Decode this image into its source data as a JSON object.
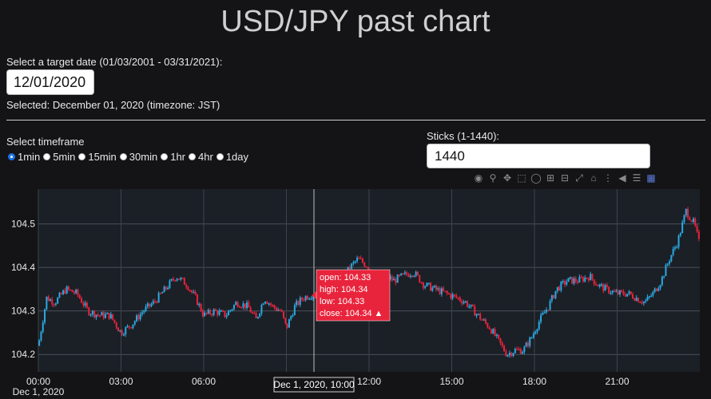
{
  "header": {
    "title": "USD/JPY past chart"
  },
  "date": {
    "label": "Select a target date (01/03/2001 - 03/31/2021):",
    "value": "12/01/2020",
    "selected_text": "Selected: December 01, 2020 (timezone: JST)"
  },
  "timeframe": {
    "label": "Select timeframe",
    "options": [
      "1min",
      "5min",
      "15min",
      "30min",
      "1hr",
      "4hr",
      "1day"
    ],
    "selected": "1min"
  },
  "sticks": {
    "label": "Sticks (1-1440):",
    "value": "1440"
  },
  "modebar": [
    "camera-icon",
    "zoom-icon",
    "pan-icon",
    "box-select-icon",
    "lasso-icon",
    "zoom-in-icon",
    "zoom-out-icon",
    "autoscale-icon",
    "home-icon",
    "spike-lines-icon",
    "hover-closest-icon",
    "hover-compare-icon",
    "plotly-logo-icon"
  ],
  "colors": {
    "up": "#29a9e1",
    "down": "#e8243c",
    "background": "#141416",
    "plot_bg": "#1b1f26"
  },
  "chart_data": {
    "type": "candlestick",
    "x_range": [
      "00:00",
      "24:00"
    ],
    "x_ticks": [
      "00:00",
      "03:00",
      "06:00",
      "09:00",
      "12:00",
      "15:00",
      "18:00",
      "21:00"
    ],
    "x_subtitle": "Dec 1, 2020",
    "ylim": [
      104.16,
      104.58
    ],
    "y_ticks": [
      "104.2",
      "104.3",
      "104.4",
      "104.5"
    ],
    "y_tick_values": [
      104.2,
      104.3,
      104.4,
      104.5
    ],
    "close_path": [
      [
        0.0,
        104.22
      ],
      [
        0.3,
        104.33
      ],
      [
        0.6,
        104.32
      ],
      [
        1.0,
        104.35
      ],
      [
        1.4,
        104.34
      ],
      [
        1.8,
        104.3
      ],
      [
        2.2,
        104.29
      ],
      [
        2.6,
        104.29
      ],
      [
        3.0,
        104.25
      ],
      [
        3.4,
        104.27
      ],
      [
        3.8,
        104.3
      ],
      [
        4.2,
        104.32
      ],
      [
        4.6,
        104.35
      ],
      [
        5.0,
        104.38
      ],
      [
        5.4,
        104.36
      ],
      [
        5.7,
        104.33
      ],
      [
        6.0,
        104.29
      ],
      [
        6.4,
        104.3
      ],
      [
        6.8,
        104.29
      ],
      [
        7.2,
        104.32
      ],
      [
        7.6,
        104.31
      ],
      [
        7.9,
        104.28
      ],
      [
        8.2,
        104.33
      ],
      [
        8.5,
        104.31
      ],
      [
        8.8,
        104.3
      ],
      [
        9.0,
        104.26
      ],
      [
        9.3,
        104.31
      ],
      [
        9.6,
        104.33
      ],
      [
        10.0,
        104.34
      ],
      [
        10.4,
        104.35
      ],
      [
        10.8,
        104.37
      ],
      [
        11.0,
        104.37
      ],
      [
        11.3,
        104.4
      ],
      [
        11.6,
        104.42
      ],
      [
        12.0,
        104.4
      ],
      [
        12.3,
        104.38
      ],
      [
        12.6,
        104.38
      ],
      [
        12.9,
        104.37
      ],
      [
        13.2,
        104.38
      ],
      [
        13.6,
        104.39
      ],
      [
        14.0,
        104.36
      ],
      [
        14.4,
        104.35
      ],
      [
        14.8,
        104.34
      ],
      [
        15.2,
        104.33
      ],
      [
        15.5,
        104.32
      ],
      [
        15.8,
        104.3
      ],
      [
        16.1,
        104.28
      ],
      [
        16.4,
        104.26
      ],
      [
        16.8,
        104.22
      ],
      [
        17.0,
        104.2
      ],
      [
        17.3,
        104.21
      ],
      [
        17.6,
        104.21
      ],
      [
        17.9,
        104.24
      ],
      [
        18.2,
        104.28
      ],
      [
        18.5,
        104.31
      ],
      [
        18.8,
        104.35
      ],
      [
        19.2,
        104.37
      ],
      [
        19.6,
        104.37
      ],
      [
        20.0,
        104.38
      ],
      [
        20.3,
        104.36
      ],
      [
        20.6,
        104.35
      ],
      [
        21.0,
        104.34
      ],
      [
        21.4,
        104.34
      ],
      [
        21.7,
        104.33
      ],
      [
        22.0,
        104.32
      ],
      [
        22.3,
        104.34
      ],
      [
        22.6,
        104.37
      ],
      [
        22.9,
        104.42
      ],
      [
        23.2,
        104.46
      ],
      [
        23.5,
        104.53
      ],
      [
        23.8,
        104.5
      ],
      [
        24.0,
        104.45
      ]
    ],
    "hover": {
      "lines": [
        "open: 104.33",
        "high: 104.34",
        "low: 104.33",
        "close: 104.34 ▲"
      ],
      "x_label": "Dec 1, 2020, 10:00",
      "x_value": 10.0,
      "y_value": 104.34
    }
  }
}
